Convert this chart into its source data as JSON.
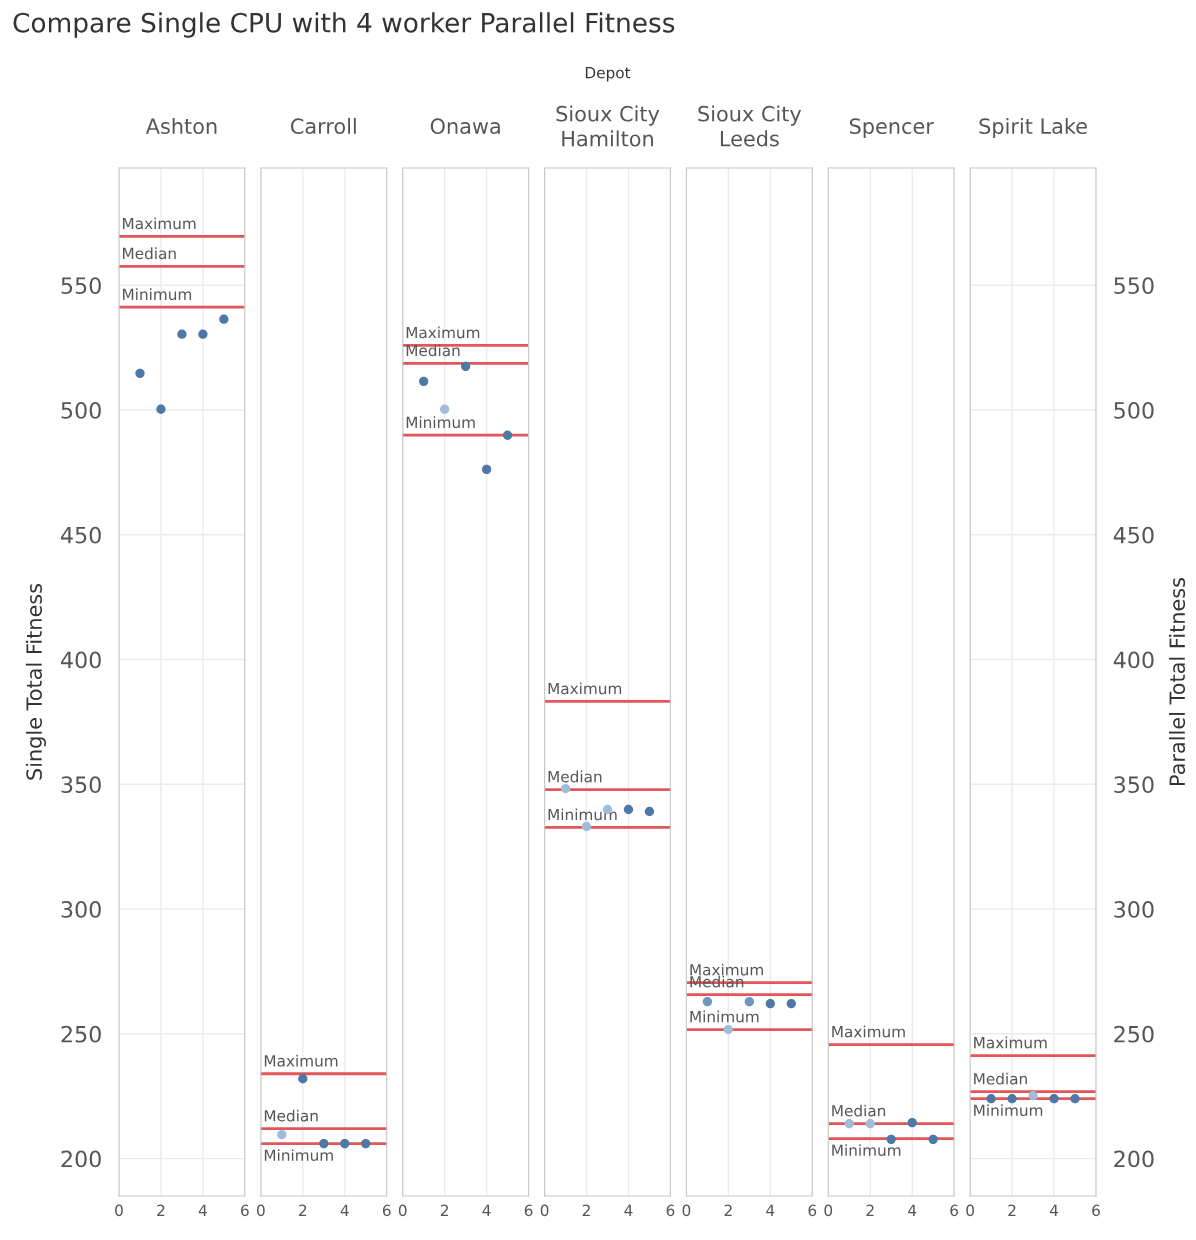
{
  "chart_data": [
    {
      "type": "scatter",
      "title": "Ashton",
      "ylabel": "Single Total Fitness",
      "annotations": [
        "Compare Single CPU with 4 worker Parallel Fitness",
        "Depot"
      ],
      "x": [
        1,
        2,
        3,
        4,
        5
      ],
      "values": [
        514.7,
        500.3,
        530.4,
        530.4,
        536.4
      ],
      "colors": [
        "#4e79a7",
        "#4e79a7",
        "#4e79a7",
        "#4e79a7",
        "#4e79a7"
      ],
      "xlim": [
        0,
        6
      ],
      "xticks": [
        0,
        2,
        4,
        6
      ],
      "ylim": [
        185,
        597
      ],
      "yticks": [
        200,
        250,
        300,
        350,
        400,
        450,
        500,
        550
      ],
      "grid": true,
      "marker": "circle",
      "tick_labels": true,
      "ref_lines": [
        {
          "axis": "y",
          "value": 569.6,
          "label": "Maximum",
          "color": "#e15759"
        },
        {
          "axis": "y",
          "value": 557.6,
          "label": "Median",
          "color": "#e15759"
        },
        {
          "axis": "y",
          "value": 541.2,
          "label": "Minimum",
          "color": "#e15759"
        }
      ]
    },
    {
      "type": "scatter",
      "title": "Carroll",
      "x": [
        1,
        2,
        3,
        4,
        5
      ],
      "values": [
        209.6,
        232.0,
        206.0,
        206.0,
        206.0
      ],
      "colors": [
        "#a0bcd8",
        "#4e79a7",
        "#4e79a7",
        "#4e79a7",
        "#4e79a7"
      ],
      "xlim": [
        0,
        6
      ],
      "xticks": [
        0,
        2,
        4,
        6
      ],
      "ylim": [
        185,
        597
      ],
      "grid": true,
      "marker": "circle",
      "tick_labels": "x",
      "ref_lines": [
        {
          "axis": "y",
          "value": 234.0,
          "label": "Maximum",
          "color": "#e15759"
        },
        {
          "axis": "y",
          "value": 212.0,
          "label": "Median",
          "color": "#e15759"
        },
        {
          "axis": "y",
          "value": 206.0,
          "label": "Minimum",
          "color": "#e15759"
        }
      ]
    },
    {
      "type": "scatter",
      "title": "Onawa",
      "x": [
        1,
        2,
        3,
        4,
        5
      ],
      "values": [
        511.5,
        500.3,
        517.5,
        476.2,
        489.9
      ],
      "colors": [
        "#4e79a7",
        "#a0bcd8",
        "#4e79a7",
        "#4e79a7",
        "#4e79a7"
      ],
      "xlim": [
        0,
        6
      ],
      "xticks": [
        0,
        2,
        4,
        6
      ],
      "ylim": [
        185,
        597
      ],
      "grid": true,
      "marker": "circle",
      "tick_labels": "x",
      "ref_lines": [
        {
          "axis": "y",
          "value": 525.9,
          "label": "Maximum",
          "color": "#e15759"
        },
        {
          "axis": "y",
          "value": 518.7,
          "label": "Median",
          "color": "#e15759"
        },
        {
          "axis": "y",
          "value": 489.9,
          "label": "Minimum",
          "color": "#e15759"
        }
      ]
    },
    {
      "type": "scatter",
      "title": "Sioux City\nHamilton",
      "x": [
        1,
        2,
        3,
        4,
        5
      ],
      "values": [
        348.3,
        333.1,
        339.9,
        339.9,
        339.1
      ],
      "colors": [
        "#a0bcd8",
        "#a0bcd8",
        "#a0bcd8",
        "#4e79a7",
        "#4e79a7"
      ],
      "xlim": [
        0,
        6
      ],
      "xticks": [
        0,
        2,
        4,
        6
      ],
      "ylim": [
        185,
        597
      ],
      "grid": true,
      "marker": "circle",
      "tick_labels": "x",
      "ref_lines": [
        {
          "axis": "y",
          "value": 383.2,
          "label": "Maximum",
          "color": "#e15759"
        },
        {
          "axis": "y",
          "value": 347.9,
          "label": "Median",
          "color": "#e15759"
        },
        {
          "axis": "y",
          "value": 332.7,
          "label": "Minimum",
          "color": "#e15759"
        }
      ]
    },
    {
      "type": "scatter",
      "title": "Sioux City\nLeeds",
      "x": [
        1,
        2,
        3,
        4,
        5
      ],
      "values": [
        262.9,
        251.7,
        262.9,
        262.1,
        262.1
      ],
      "colors": [
        "#7096bf",
        "#a0bcd8",
        "#7096bf",
        "#4e79a7",
        "#4e79a7"
      ],
      "xlim": [
        0,
        6
      ],
      "xticks": [
        0,
        2,
        4,
        6
      ],
      "ylim": [
        185,
        597
      ],
      "grid": true,
      "marker": "circle",
      "tick_labels": "x",
      "ref_lines": [
        {
          "axis": "y",
          "value": 270.5,
          "label": "Maximum",
          "color": "#e15759"
        },
        {
          "axis": "y",
          "value": 265.7,
          "label": "Median",
          "color": "#e15759"
        },
        {
          "axis": "y",
          "value": 251.7,
          "label": "Minimum",
          "color": "#e15759"
        }
      ]
    },
    {
      "type": "scatter",
      "title": "Spencer",
      "x": [
        1,
        2,
        3,
        4,
        5
      ],
      "values": [
        214.0,
        214.0,
        207.7,
        214.4,
        207.7
      ],
      "colors": [
        "#a0bcd8",
        "#a0bcd8",
        "#4e79a7",
        "#4e79a7",
        "#4e79a7"
      ],
      "xlim": [
        0,
        6
      ],
      "xticks": [
        0,
        2,
        4,
        6
      ],
      "ylim": [
        185,
        597
      ],
      "grid": true,
      "marker": "circle",
      "tick_labels": "x",
      "ref_lines": [
        {
          "axis": "y",
          "value": 245.7,
          "label": "Maximum",
          "color": "#e15759"
        },
        {
          "axis": "y",
          "value": 214.0,
          "label": "Median",
          "color": "#e15759"
        },
        {
          "axis": "y",
          "value": 208.0,
          "label": "Minimum",
          "color": "#e15759"
        }
      ]
    },
    {
      "type": "scatter",
      "title": "Spirit Lake",
      "ylabel": "Parallel Total Fitness",
      "x": [
        1,
        2,
        3,
        4,
        5
      ],
      "values": [
        224.0,
        224.0,
        225.2,
        224.0,
        224.0
      ],
      "colors": [
        "#4e79a7",
        "#4e79a7",
        "#a0bcd8",
        "#4e79a7",
        "#4e79a7"
      ],
      "xlim": [
        0,
        6
      ],
      "xticks": [
        0,
        2,
        4,
        6
      ],
      "ylim": [
        185,
        597
      ],
      "yticks": [
        200,
        250,
        300,
        350,
        400,
        450,
        500,
        550
      ],
      "grid": true,
      "marker": "circle",
      "ref_lines": [
        {
          "axis": "y",
          "value": 241.3,
          "label": "Maximum",
          "color": "#e15759"
        },
        {
          "axis": "y",
          "value": 226.8,
          "label": "Median",
          "color": "#e15759"
        },
        {
          "axis": "y",
          "value": 224.0,
          "label": "Minimum",
          "color": "#e15759"
        }
      ]
    }
  ]
}
